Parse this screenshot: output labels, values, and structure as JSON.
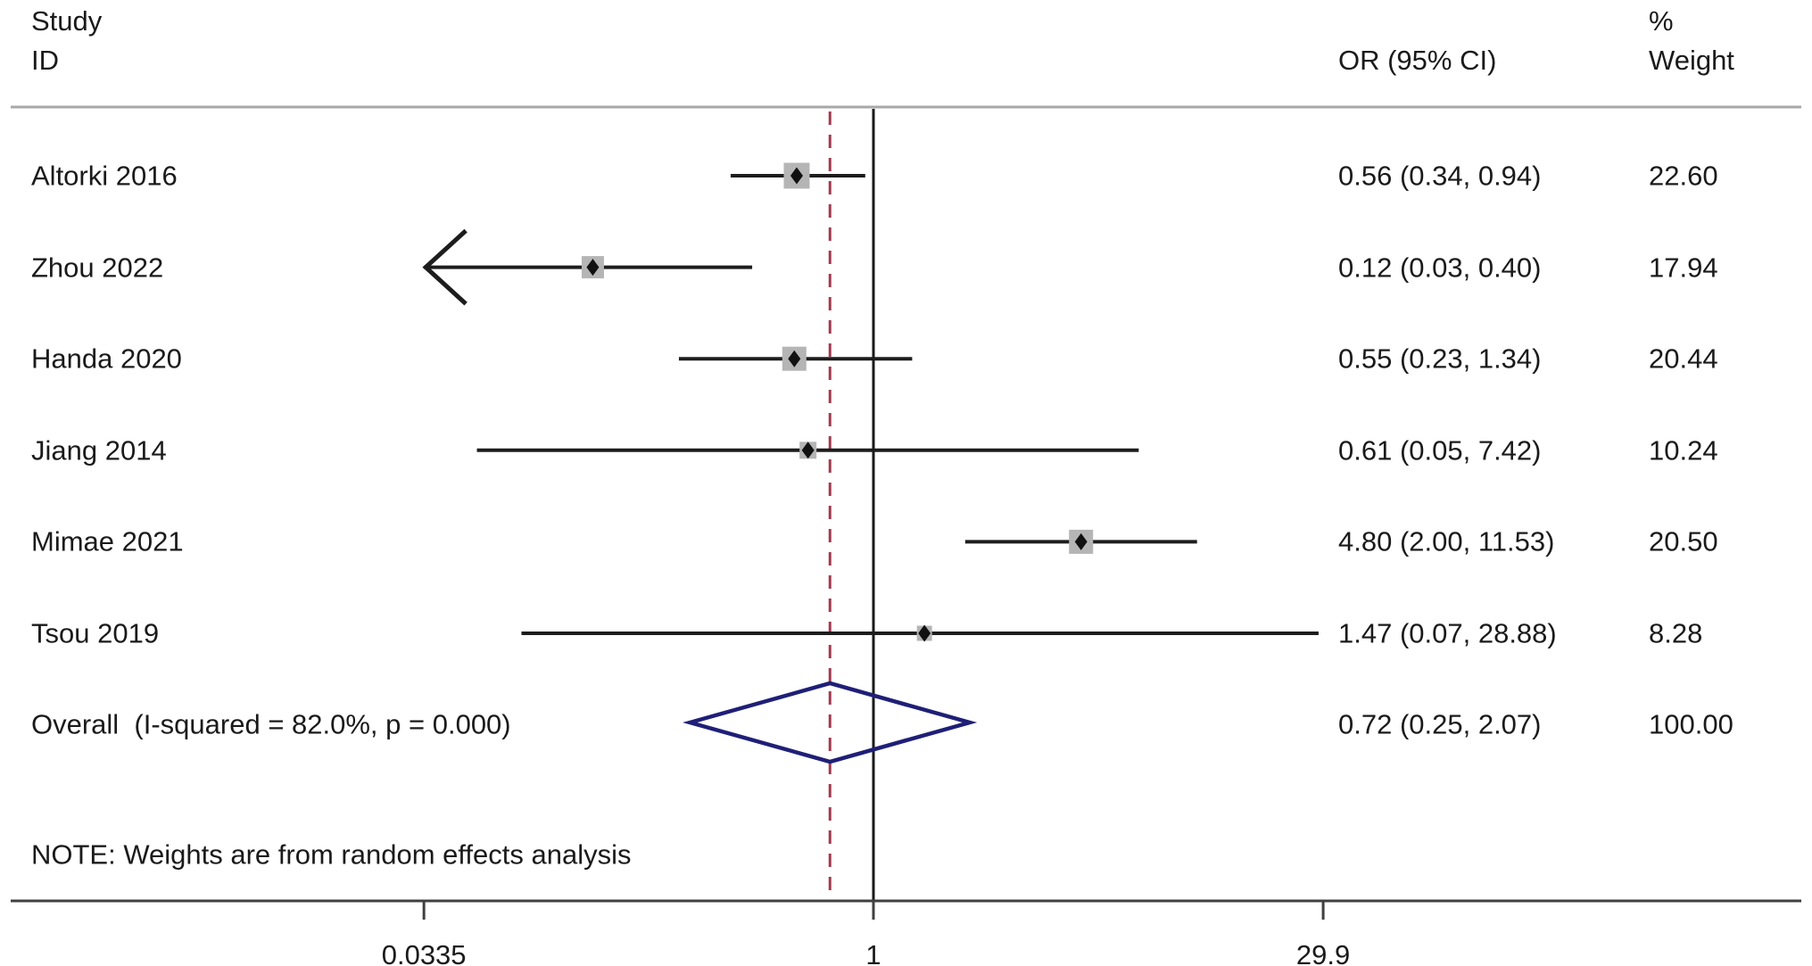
{
  "header": {
    "study_line1": "Study",
    "study_line2": "ID",
    "or_col": "OR (95% CI)",
    "weight_line1": "%",
    "weight_line2": "Weight"
  },
  "note": "NOTE: Weights are from random effects analysis",
  "overall_row": {
    "label": "Overall  (I-squared = 82.0%, p = 0.000)",
    "or_text": "0.72 (0.25, 2.07)",
    "weight_text": "100.00"
  },
  "colors": {
    "text": "#1a1a1a",
    "ci_line": "#1d1d1d",
    "marker_fill": "#b5b5b5",
    "marker_point": "#111111",
    "diamond_stroke": "#1f1f78",
    "overall_dashed_line": "#a23b50",
    "null_line": "#1a1a1a",
    "header_rule": "#a8a8a8",
    "axis_line": "#404040"
  },
  "chart_data": {
    "type": "forest",
    "effect_measure": "OR",
    "x_scale": "log",
    "x_ticks": [
      0.0335,
      1,
      29.9
    ],
    "x_tick_labels": [
      "0.0335",
      "1",
      "29.9"
    ],
    "null_line_value": 1,
    "overall_dashed_line_value": 0.72,
    "studies": [
      {
        "id": "Altorki 2016",
        "or": 0.56,
        "ci_low": 0.34,
        "ci_high": 0.94,
        "or_text": "0.56 (0.34, 0.94)",
        "weight": 22.6,
        "weight_text": "22.60",
        "arrow_low": false
      },
      {
        "id": "Zhou 2022",
        "or": 0.12,
        "ci_low": 0.03,
        "ci_high": 0.4,
        "or_text": "0.12 (0.03, 0.40)",
        "weight": 17.94,
        "weight_text": "17.94",
        "arrow_low": true
      },
      {
        "id": "Handa 2020",
        "or": 0.55,
        "ci_low": 0.23,
        "ci_high": 1.34,
        "or_text": "0.55 (0.23, 1.34)",
        "weight": 20.44,
        "weight_text": "20.44",
        "arrow_low": false
      },
      {
        "id": "Jiang 2014",
        "or": 0.61,
        "ci_low": 0.05,
        "ci_high": 7.42,
        "or_text": "0.61 (0.05, 7.42)",
        "weight": 10.24,
        "weight_text": "10.24",
        "arrow_low": false
      },
      {
        "id": "Mimae 2021",
        "or": 4.8,
        "ci_low": 2.0,
        "ci_high": 11.53,
        "or_text": "4.80 (2.00, 11.53)",
        "weight": 20.5,
        "weight_text": "20.50",
        "arrow_low": false
      },
      {
        "id": "Tsou 2019",
        "or": 1.47,
        "ci_low": 0.07,
        "ci_high": 28.88,
        "or_text": "1.47 (0.07, 28.88)",
        "weight": 8.28,
        "weight_text": "8.28",
        "arrow_low": false
      }
    ],
    "overall": {
      "or": 0.72,
      "ci_low": 0.25,
      "ci_high": 2.07,
      "i_squared": "82.0%",
      "p": "0.000",
      "weight": 100.0,
      "model": "random effects"
    }
  }
}
